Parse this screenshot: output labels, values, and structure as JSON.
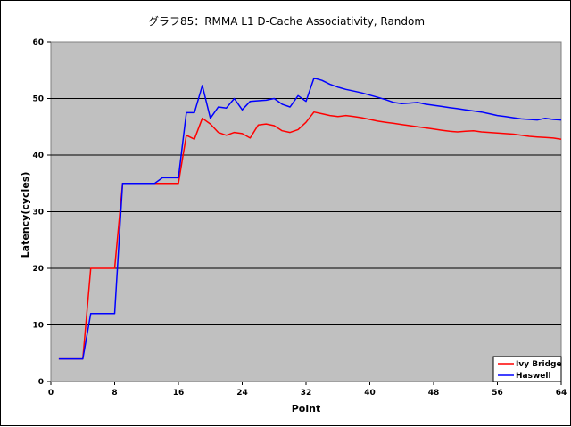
{
  "chart_data": {
    "type": "line",
    "title": "グラフ85：RMMA L1 D-Cache Associativity, Random",
    "xlabel": "Point",
    "ylabel": "Latency(cycles)",
    "xlim": [
      0,
      64
    ],
    "ylim": [
      0,
      60
    ],
    "x_ticks": [
      0,
      8,
      16,
      24,
      32,
      40,
      48,
      56,
      64
    ],
    "y_ticks": [
      0,
      10,
      20,
      30,
      40,
      50,
      60
    ],
    "grid": "horizontal",
    "legend_position": "bottom-right",
    "series": [
      {
        "name": "Ivy Bridge",
        "color": "#ff0000",
        "x": [
          1,
          2,
          3,
          4,
          5,
          6,
          7,
          8,
          9,
          10,
          11,
          12,
          13,
          14,
          15,
          16,
          17,
          18,
          19,
          20,
          21,
          22,
          23,
          24,
          25,
          26,
          27,
          28,
          29,
          30,
          31,
          32,
          33,
          34,
          35,
          36,
          37,
          38,
          39,
          40,
          41,
          42,
          43,
          44,
          45,
          46,
          47,
          48,
          49,
          50,
          51,
          52,
          53,
          54,
          55,
          56,
          57,
          58,
          59,
          60,
          61,
          62,
          63,
          64
        ],
        "y": [
          4,
          4,
          4,
          4,
          20,
          20,
          20,
          20,
          35,
          35,
          35,
          35,
          35,
          35,
          35,
          35,
          43.5,
          42.8,
          46.5,
          45.5,
          44,
          43.5,
          44,
          43.8,
          43,
          45.3,
          45.5,
          45.2,
          44.3,
          44,
          44.5,
          45.8,
          47.6,
          47.3,
          47,
          46.8,
          47,
          46.8,
          46.6,
          46.3,
          46,
          45.8,
          45.6,
          45.4,
          45.2,
          45,
          44.8,
          44.6,
          44.4,
          44.2,
          44.1,
          44.2,
          44.3,
          44.1,
          44,
          43.9,
          43.8,
          43.7,
          43.5,
          43.3,
          43.2,
          43.1,
          43,
          42.8
        ]
      },
      {
        "name": "Haswell",
        "color": "#0000ff",
        "x": [
          1,
          2,
          3,
          4,
          5,
          6,
          7,
          8,
          9,
          10,
          11,
          12,
          13,
          14,
          15,
          16,
          17,
          18,
          19,
          20,
          21,
          22,
          23,
          24,
          25,
          26,
          27,
          28,
          29,
          30,
          31,
          32,
          33,
          34,
          35,
          36,
          37,
          38,
          39,
          40,
          41,
          42,
          43,
          44,
          45,
          46,
          47,
          48,
          49,
          50,
          51,
          52,
          53,
          54,
          55,
          56,
          57,
          58,
          59,
          60,
          61,
          62,
          63,
          64
        ],
        "y": [
          4,
          4,
          4,
          4,
          12,
          12,
          12,
          12,
          35,
          35,
          35,
          35,
          35,
          36,
          36,
          36,
          47.5,
          47.5,
          52.3,
          46.5,
          48.5,
          48.3,
          50,
          48,
          49.5,
          49.6,
          49.7,
          50,
          49,
          48.5,
          50.5,
          49.5,
          53.6,
          53.2,
          52.5,
          52,
          51.6,
          51.3,
          51,
          50.6,
          50.2,
          49.8,
          49.3,
          49.1,
          49.2,
          49.3,
          49,
          48.8,
          48.6,
          48.4,
          48.2,
          48,
          47.8,
          47.6,
          47.3,
          47,
          46.8,
          46.6,
          46.4,
          46.3,
          46.2,
          46.5,
          46.3,
          46.2
        ]
      }
    ]
  }
}
